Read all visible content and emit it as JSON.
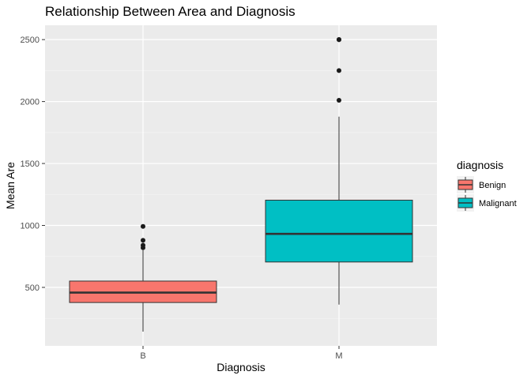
{
  "chart_data": {
    "type": "boxplot",
    "title": "Relationship Between Area and Diagnosis",
    "xlabel": "Diagnosis",
    "ylabel": "Mean Are",
    "categories": [
      "B",
      "M"
    ],
    "ylim": [
      143,
      2501
    ],
    "yticks": [
      500,
      1000,
      1500,
      2000,
      2500
    ],
    "grid": true,
    "legend": {
      "title": "diagnosis",
      "position": "right",
      "entries": [
        {
          "label": "Benign",
          "color": "#F8766D"
        },
        {
          "label": "Malignant",
          "color": "#00BFC4"
        }
      ]
    },
    "series": [
      {
        "category": "B",
        "fill": "#F8766D",
        "whisker_low": 143,
        "q1": 378,
        "median": 458,
        "q3": 551,
        "whisker_high": 800,
        "outliers": [
          992,
          880,
          840,
          820
        ]
      },
      {
        "category": "M",
        "fill": "#00BFC4",
        "whisker_low": 361,
        "q1": 705,
        "median": 932,
        "q3": 1204,
        "whisker_high": 1878,
        "outliers": [
          2010,
          2250,
          2499,
          2501
        ]
      }
    ]
  },
  "colors": {
    "panel_background": "#EBEBEB",
    "major_grid": "#FFFFFF",
    "minor_grid": "#F4F4F4",
    "box_outline": "#333333",
    "tick_text": "#4D4D4D"
  }
}
